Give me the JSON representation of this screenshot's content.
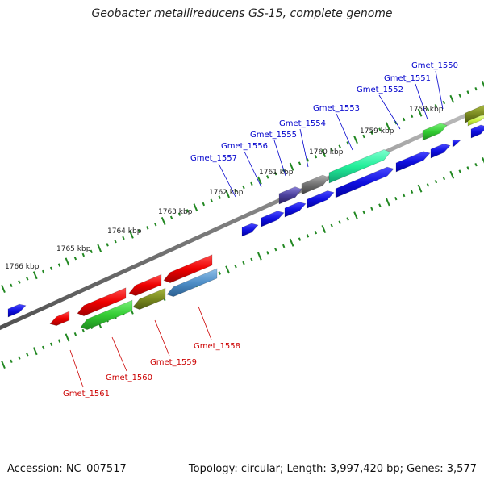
{
  "title": "Geobacter metallireducens GS-15, complete genome",
  "footer": {
    "accession_label": "Accession: NC_007517",
    "summary": "Topology: circular; Length: 3,997,420 bp; Genes: 3,577"
  },
  "colors": {
    "forward_label": "#0000cc",
    "reverse_label": "#cc0000",
    "backbone": "#888888",
    "tick": "#228822"
  },
  "ticks": [
    {
      "label": "1758 kbp"
    },
    {
      "label": "1759 kbp"
    },
    {
      "label": "1760 kbp"
    },
    {
      "label": "1761 kbp"
    },
    {
      "label": "1762 kbp"
    },
    {
      "label": "1763 kbp"
    },
    {
      "label": "1764 kbp"
    },
    {
      "label": "1765 kbp"
    },
    {
      "label": "1766 kbp"
    }
  ],
  "forward_genes": [
    {
      "name": "Gmet_1550"
    },
    {
      "name": "Gmet_1551"
    },
    {
      "name": "Gmet_1552"
    },
    {
      "name": "Gmet_1553"
    },
    {
      "name": "Gmet_1554"
    },
    {
      "name": "Gmet_1555"
    },
    {
      "name": "Gmet_1556"
    },
    {
      "name": "Gmet_1557"
    }
  ],
  "reverse_genes": [
    {
      "name": "Gmet_1558"
    },
    {
      "name": "Gmet_1559"
    },
    {
      "name": "Gmet_1560"
    },
    {
      "name": "Gmet_1561"
    }
  ]
}
